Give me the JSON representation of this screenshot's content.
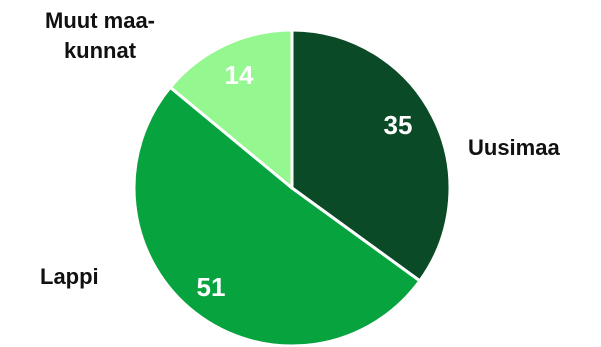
{
  "chart_data": {
    "type": "pie",
    "slices": [
      {
        "label": "Uusimaa",
        "value": 35,
        "color": "#0b4a26"
      },
      {
        "label": "Lappi",
        "value": 51,
        "color": "#06a33e"
      },
      {
        "label": "Muut maa-kunnat",
        "label_lines": [
          "Muut maa-",
          "kunnat"
        ],
        "value": 14,
        "color": "#94f78f"
      }
    ],
    "start_angle": "12 o'clock",
    "direction": "clockwise",
    "slice_border_color": "#ffffff"
  }
}
